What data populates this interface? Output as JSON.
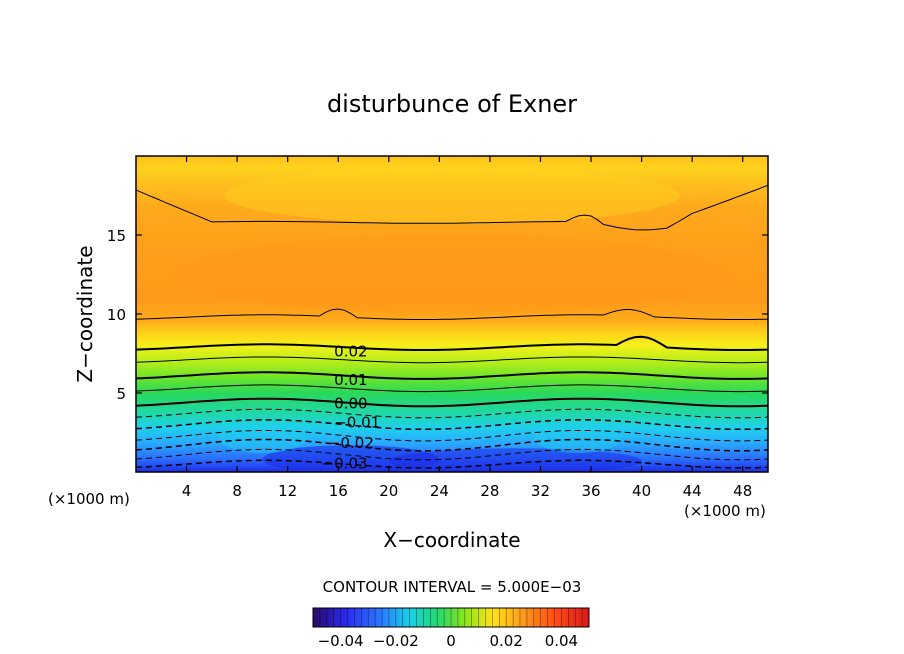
{
  "chart_data": {
    "type": "contour",
    "title": "disturbunce of Exner",
    "xlabel": "X−coordinate",
    "ylabel": "Z−coordinate",
    "x_unit": "(×1000 m)",
    "x_unit_right": "(×1000 m)",
    "xlim": [
      0,
      50
    ],
    "ylim": [
      0,
      20
    ],
    "x_ticks": [
      4,
      8,
      12,
      16,
      20,
      24,
      28,
      32,
      36,
      40,
      44,
      48
    ],
    "x_tick_labels": [
      "4",
      "8",
      "12",
      "16",
      "20",
      "24",
      "28",
      "32",
      "36",
      "40",
      "44",
      "48"
    ],
    "y_ticks": [
      5,
      10,
      15
    ],
    "y_tick_labels": [
      "5",
      "10",
      "15"
    ],
    "contour_interval_text": "CONTOUR INTERVAL = 5.000E−03",
    "contour_labels": [
      {
        "text": "0.02",
        "x": 17.0,
        "z": 7.7
      },
      {
        "text": "0.01",
        "x": 17.0,
        "z": 5.9
      },
      {
        "text": "0.00",
        "x": 17.0,
        "z": 4.4
      },
      {
        "text": "−0.01",
        "x": 17.5,
        "z": 3.2
      },
      {
        "text": "−0.02",
        "x": 17.0,
        "z": 1.9
      },
      {
        "text": "−0.03",
        "x": 16.5,
        "z": 0.6
      }
    ],
    "colorbar": {
      "range": [
        -0.05,
        0.05
      ],
      "tick_values": [
        -0.04,
        -0.02,
        0,
        0.02,
        0.04
      ],
      "tick_labels": [
        "−0.04",
        "−0.02",
        "0",
        "0.02",
        "0.04"
      ]
    },
    "field": {
      "min_bottom": -0.045,
      "level_8km": 0.02,
      "upper_band": 0.03,
      "top": 0.035
    },
    "colors": {
      "deep_blue": "#1d2ee8",
      "blue": "#2a6cff",
      "cyan": "#1fd0ec",
      "green": "#2ad85a",
      "yellow_green": "#b8ee1a",
      "yellow": "#ffe21a",
      "orange": "#ff9a1a"
    }
  }
}
